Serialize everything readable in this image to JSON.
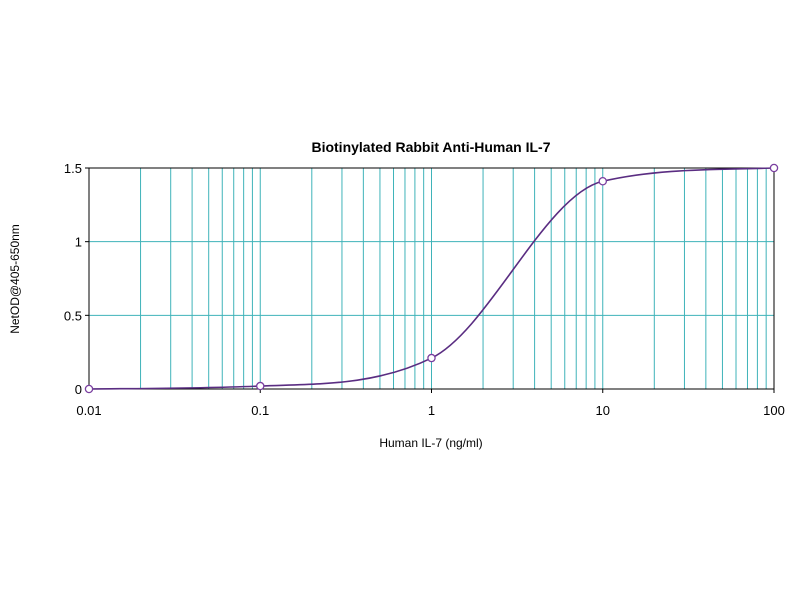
{
  "chart_data": {
    "type": "line",
    "title": "Biotinylated Rabbit Anti-Human IL-7",
    "xlabel": "Human IL-7 (ng/ml)",
    "ylabel": "NetOD@405-650nm",
    "x_scale": "log",
    "xlim": [
      0.01,
      100
    ],
    "ylim": [
      0,
      1.5
    ],
    "x_ticks": [
      "0.01",
      "0.1",
      "1",
      "10",
      "100"
    ],
    "y_ticks": [
      "0",
      "0.5",
      "1",
      "1.5"
    ],
    "grid": true,
    "legend": "none",
    "series": [
      {
        "points": [
          {
            "x": 0.01,
            "y": 0.0
          },
          {
            "x": 0.1,
            "y": 0.02
          },
          {
            "x": 1,
            "y": 0.21
          },
          {
            "x": 10,
            "y": 1.41
          },
          {
            "x": 100,
            "y": 1.5
          }
        ],
        "curve": "4-parameter logistic fit",
        "color": "#5a2d82",
        "marker_color": "#7a3fa0"
      }
    ],
    "colors": {
      "grid": "#3fb3b9",
      "frame": "#000000"
    }
  }
}
